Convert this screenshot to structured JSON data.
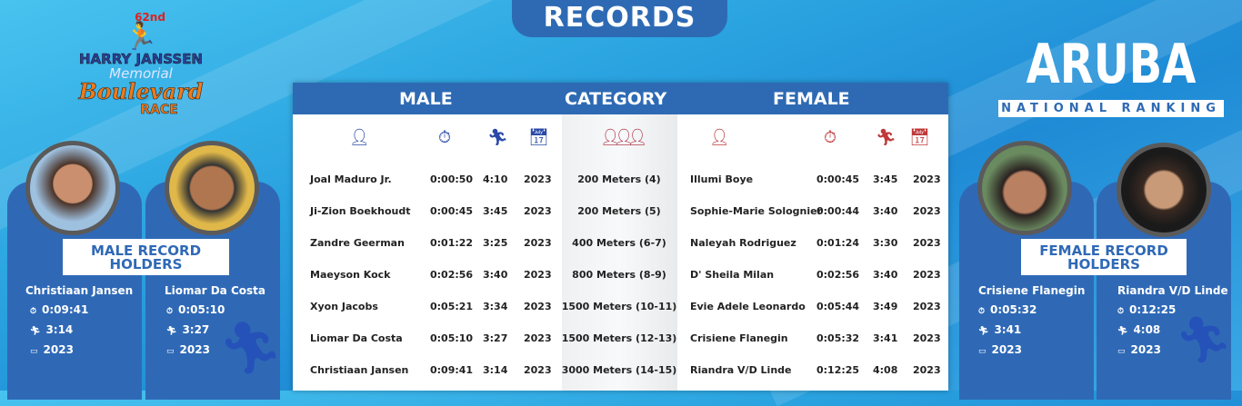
{
  "title": "RECORDS",
  "logo": {
    "edition": "62nd",
    "line1": "HARRY JANSSEN",
    "line2": "Memorial",
    "line3": "Boulevard",
    "line4": "RACE"
  },
  "brand": {
    "title": "ARUBA",
    "subtitle": "NATIONAL RANKING"
  },
  "colors": {
    "primary": "#2e6ab4",
    "male_icon": "#2a4aa8",
    "female_icon": "#c0393b",
    "orange": "#f07a1a"
  },
  "table": {
    "headers": {
      "male": "MALE",
      "category": "CATEGORY",
      "female": "FEMALE"
    },
    "icons": {
      "male": [
        "person-icon",
        "stopwatch-icon",
        "runner-icon",
        "calendar-icon"
      ],
      "category": "group-icon",
      "female": [
        "person-icon",
        "stopwatch-icon",
        "runner-icon",
        "calendar-icon"
      ]
    },
    "rows": [
      {
        "male_name": "Joal Maduro Jr.",
        "male_time": "0:00:50",
        "male_pace": "4:10",
        "male_year": "2023",
        "category": "200 Meters (4)",
        "female_name": "Illumi Boye",
        "female_time": "0:00:45",
        "female_pace": "3:45",
        "female_year": "2023"
      },
      {
        "male_name": "Ji-Zion Boekhoudt",
        "male_time": "0:00:45",
        "male_pace": "3:45",
        "male_year": "2023",
        "category": "200 Meters (5)",
        "female_name": "Sophie-Marie Solognier",
        "female_time": "0:00:44",
        "female_pace": "3:40",
        "female_year": "2023"
      },
      {
        "male_name": "Zandre Geerman",
        "male_time": "0:01:22",
        "male_pace": "3:25",
        "male_year": "2023",
        "category": "400 Meters (6-7)",
        "female_name": "Naleyah Rodriguez",
        "female_time": "0:01:24",
        "female_pace": "3:30",
        "female_year": "2023"
      },
      {
        "male_name": "Maeyson Kock",
        "male_time": "0:02:56",
        "male_pace": "3:40",
        "male_year": "2023",
        "category": "800 Meters (8-9)",
        "female_name": "D' Sheila Milan",
        "female_time": "0:02:56",
        "female_pace": "3:40",
        "female_year": "2023"
      },
      {
        "male_name": "Xyon Jacobs",
        "male_time": "0:05:21",
        "male_pace": "3:34",
        "male_year": "2023",
        "category": "1500 Meters (10-11)",
        "female_name": "Evie Adele Leonardo",
        "female_time": "0:05:44",
        "female_pace": "3:49",
        "female_year": "2023"
      },
      {
        "male_name": "Liomar Da Costa",
        "male_time": "0:05:10",
        "male_pace": "3:27",
        "male_year": "2023",
        "category": "1500 Meters (12-13)",
        "female_name": "Crisiene Flanegin",
        "female_time": "0:05:32",
        "female_pace": "3:41",
        "female_year": "2023"
      },
      {
        "male_name": "Christiaan Jansen",
        "male_time": "0:09:41",
        "male_pace": "3:14",
        "male_year": "2023",
        "category": "3000 Meters (14-15)",
        "female_name": "Riandra V/D Linde",
        "female_time": "0:12:25",
        "female_pace": "4:08",
        "female_year": "2023"
      }
    ]
  },
  "male_holders": {
    "label": "MALE RECORD HOLDERS",
    "people": [
      {
        "name": "Christiaan Jansen",
        "time": "0:09:41",
        "pace": "3:14",
        "year": "2023"
      },
      {
        "name": "Liomar Da Costa",
        "time": "0:05:10",
        "pace": "3:27",
        "year": "2023"
      }
    ]
  },
  "female_holders": {
    "label": "FEMALE RECORD HOLDERS",
    "people": [
      {
        "name": "Crisiene Flanegin",
        "time": "0:05:32",
        "pace": "3:41",
        "year": "2023"
      },
      {
        "name": "Riandra V/D Linde",
        "time": "0:12:25",
        "pace": "4:08",
        "year": "2023"
      }
    ]
  }
}
